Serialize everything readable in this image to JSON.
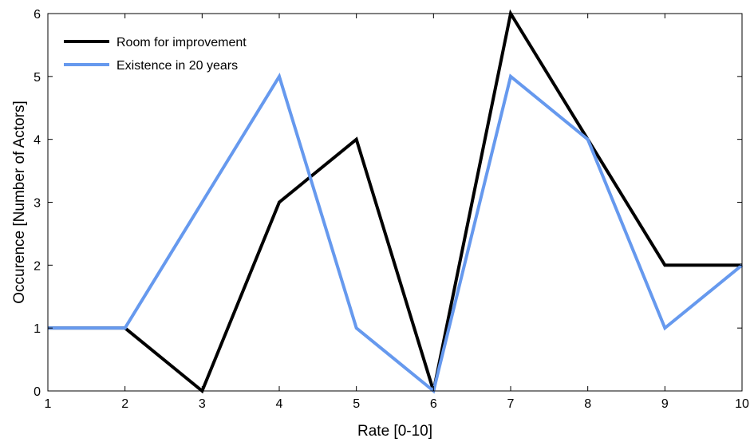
{
  "chart_data": {
    "type": "line",
    "title": "",
    "xlabel": "Rate [0-10]",
    "ylabel": "Occurence [Number of Actors]",
    "x": [
      1,
      2,
      3,
      4,
      5,
      6,
      7,
      8,
      9,
      10
    ],
    "xlim": [
      1,
      10
    ],
    "ylim": [
      0,
      6
    ],
    "xticks": [
      "1",
      "2",
      "3",
      "4",
      "5",
      "6",
      "7",
      "8",
      "9",
      "10"
    ],
    "yticks": [
      "0",
      "1",
      "2",
      "3",
      "4",
      "5",
      "6"
    ],
    "grid": false,
    "legend_position": "top-left",
    "series": [
      {
        "name": "Room for improvement",
        "color": "#000000",
        "values": [
          1,
          1,
          0,
          3,
          4,
          0,
          6,
          4,
          2,
          2
        ]
      },
      {
        "name": "Existence in 20 years",
        "color": "#6699ee",
        "values": [
          1,
          1,
          3,
          5,
          1,
          0,
          5,
          4,
          1,
          2
        ]
      }
    ]
  }
}
